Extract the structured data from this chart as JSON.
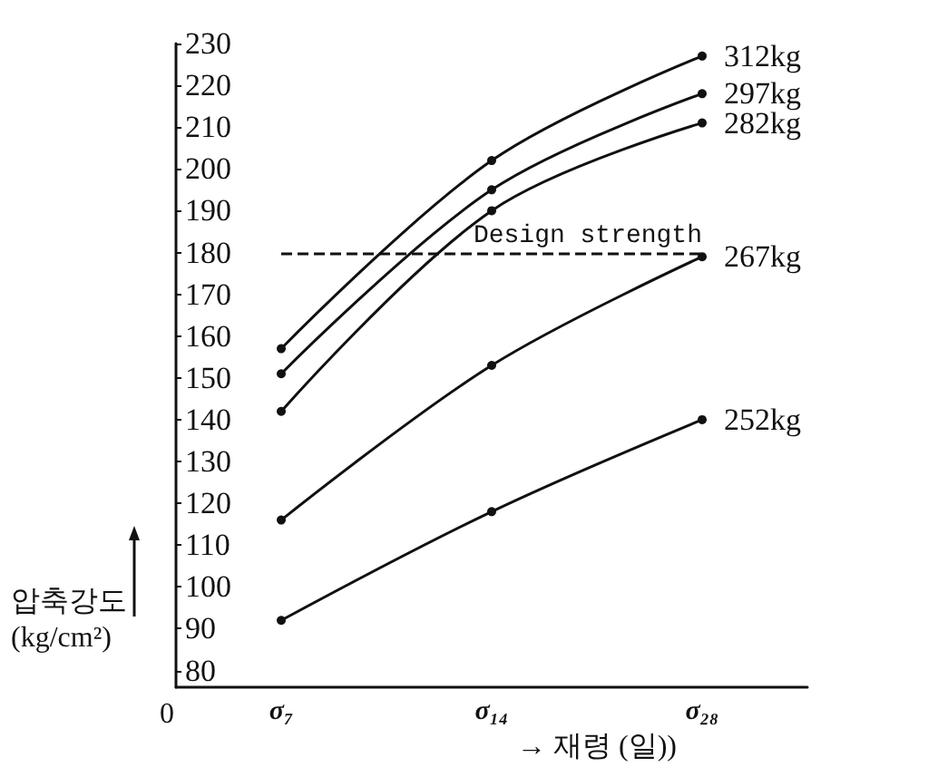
{
  "chart_data": {
    "type": "line",
    "ylabel": "압축강도\n(kg/cm²)",
    "xlabel": "→ 재령 (일))",
    "categories": [
      "σ₇",
      "σ₁₄",
      "σ₂₈"
    ],
    "annotations": [
      "0"
    ],
    "ylim": [
      76,
      230
    ],
    "yticks": [
      80,
      90,
      100,
      110,
      120,
      130,
      140,
      150,
      160,
      170,
      180,
      190,
      200,
      210,
      220,
      230
    ],
    "series": [
      {
        "name": "312kg",
        "color": "#111111",
        "values": [
          157,
          202,
          227
        ]
      },
      {
        "name": "297kg",
        "color": "#111111",
        "values": [
          151,
          195,
          218
        ]
      },
      {
        "name": "282kg",
        "color": "#111111",
        "values": [
          142,
          190,
          211
        ]
      },
      {
        "name": "267kg",
        "color": "#111111",
        "values": [
          116,
          153,
          179
        ]
      },
      {
        "name": "252kg",
        "color": "#111111",
        "values": [
          92,
          118,
          140
        ]
      }
    ],
    "ref_lines": [
      {
        "axis": "y",
        "value": 180,
        "label": "Design strength",
        "line_style": "dashed"
      }
    ],
    "marker": "circle",
    "grid": false,
    "legend": false
  }
}
